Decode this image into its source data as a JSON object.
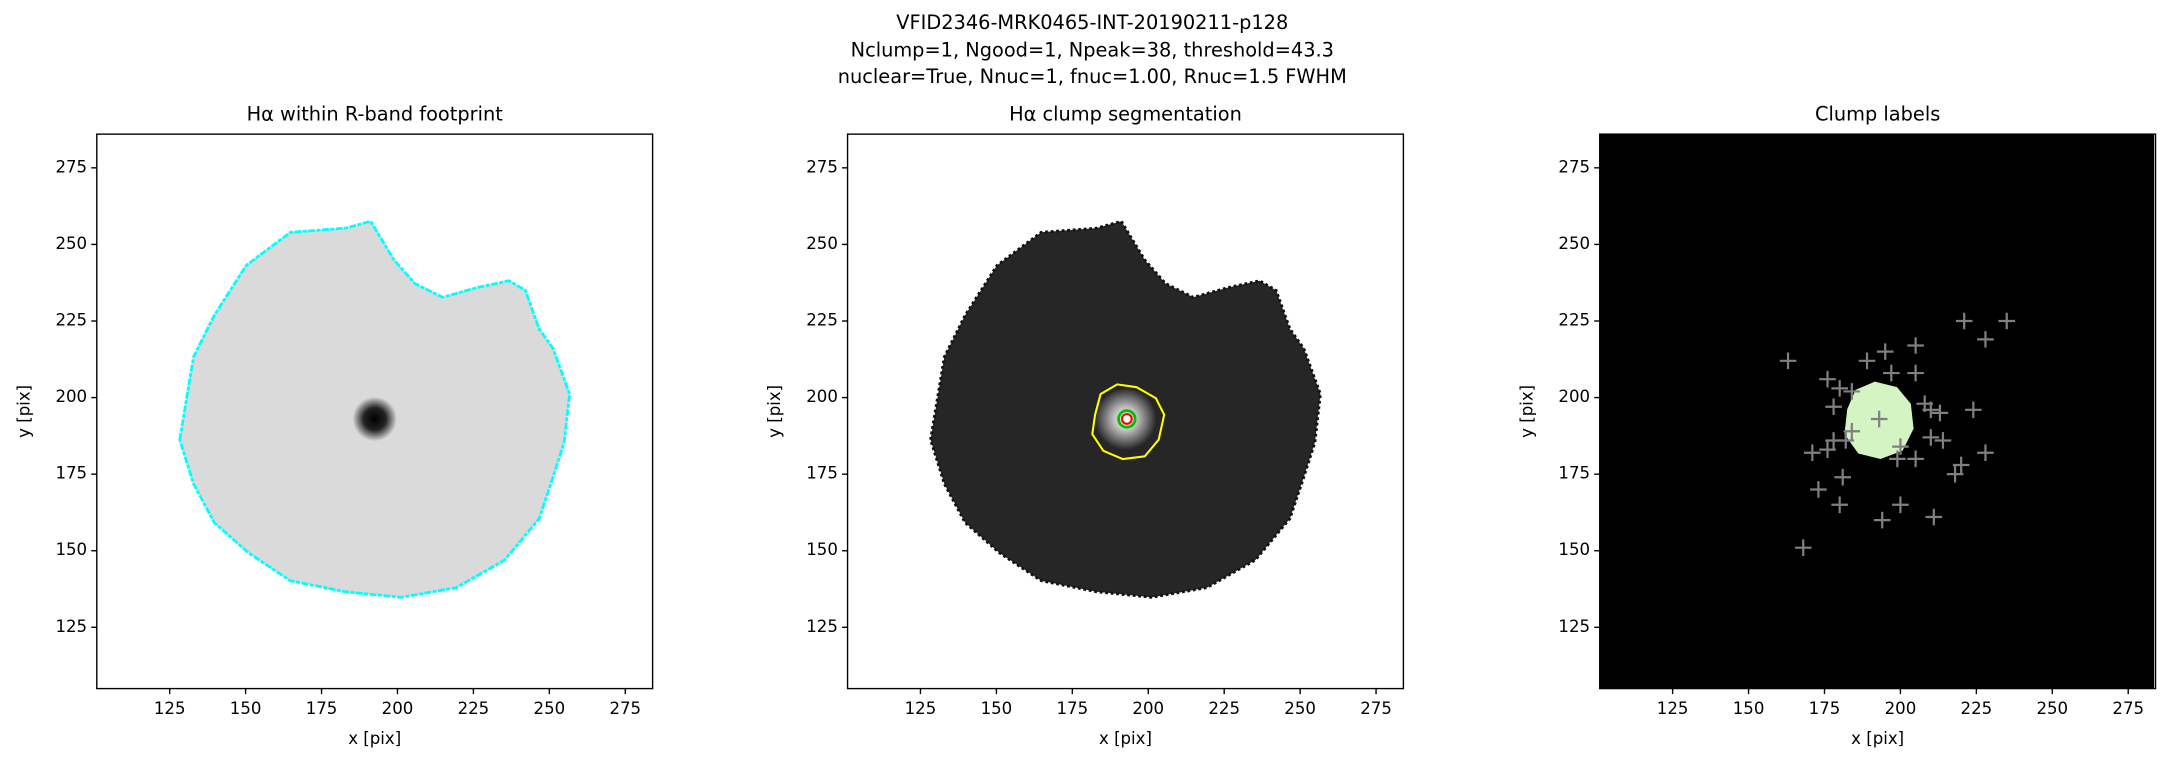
{
  "figure_title": [
    "VFID2346-MRK0465-INT-20190211-p128",
    "Nclump=1, Ngood=1, Npeak=38, threshold=43.3",
    "nuclear=True, Nnuc=1, fnuc=1.00, Rnuc=1.5 FWHM"
  ],
  "chart_data": [
    {
      "type": "image",
      "title": "Hα within R-band footprint",
      "x_label": "x [pix]",
      "y_label": "y [pix]",
      "xlim": [
        101,
        284
      ],
      "ylim": [
        105,
        286
      ],
      "xticks": [
        125,
        150,
        175,
        200,
        225,
        250,
        275
      ],
      "yticks": [
        125,
        150,
        175,
        200,
        225,
        250,
        275
      ]
    },
    {
      "type": "image",
      "title": "Hα clump segmentation",
      "x_label": "x [pix]",
      "y_label": "y [pix]",
      "xlim": [
        101,
        284
      ],
      "ylim": [
        105,
        286
      ],
      "xticks": [
        125,
        150,
        175,
        200,
        225,
        250,
        275
      ],
      "yticks": [
        125,
        150,
        175,
        200,
        225,
        250,
        275
      ]
    },
    {
      "type": "scatter",
      "title": "Clump labels",
      "x_label": "x [pix]",
      "y_label": "y [pix]",
      "color": "#808080",
      "xlim": [
        101,
        284
      ],
      "ylim": [
        105,
        286
      ],
      "xticks": [
        125,
        150,
        175,
        200,
        225,
        250,
        275
      ],
      "yticks": [
        125,
        150,
        175,
        200,
        225,
        250,
        275
      ],
      "x": [
        163,
        176,
        178,
        180,
        184,
        189,
        195,
        197,
        205,
        205,
        208,
        210,
        213,
        224,
        221,
        228,
        235,
        178,
        176,
        171,
        182,
        184,
        200,
        205,
        210,
        214,
        218,
        220,
        228,
        181,
        173,
        180,
        200,
        194,
        211,
        168,
        193,
        199
      ],
      "y": [
        212,
        206,
        197,
        203,
        202,
        212,
        215,
        208,
        217,
        208,
        198,
        196,
        195,
        196,
        225,
        219,
        225,
        186,
        183,
        182,
        186,
        189,
        184,
        180,
        187,
        186,
        175,
        178,
        182,
        174,
        170,
        165,
        165,
        160,
        161,
        151,
        193,
        180
      ]
    }
  ]
}
